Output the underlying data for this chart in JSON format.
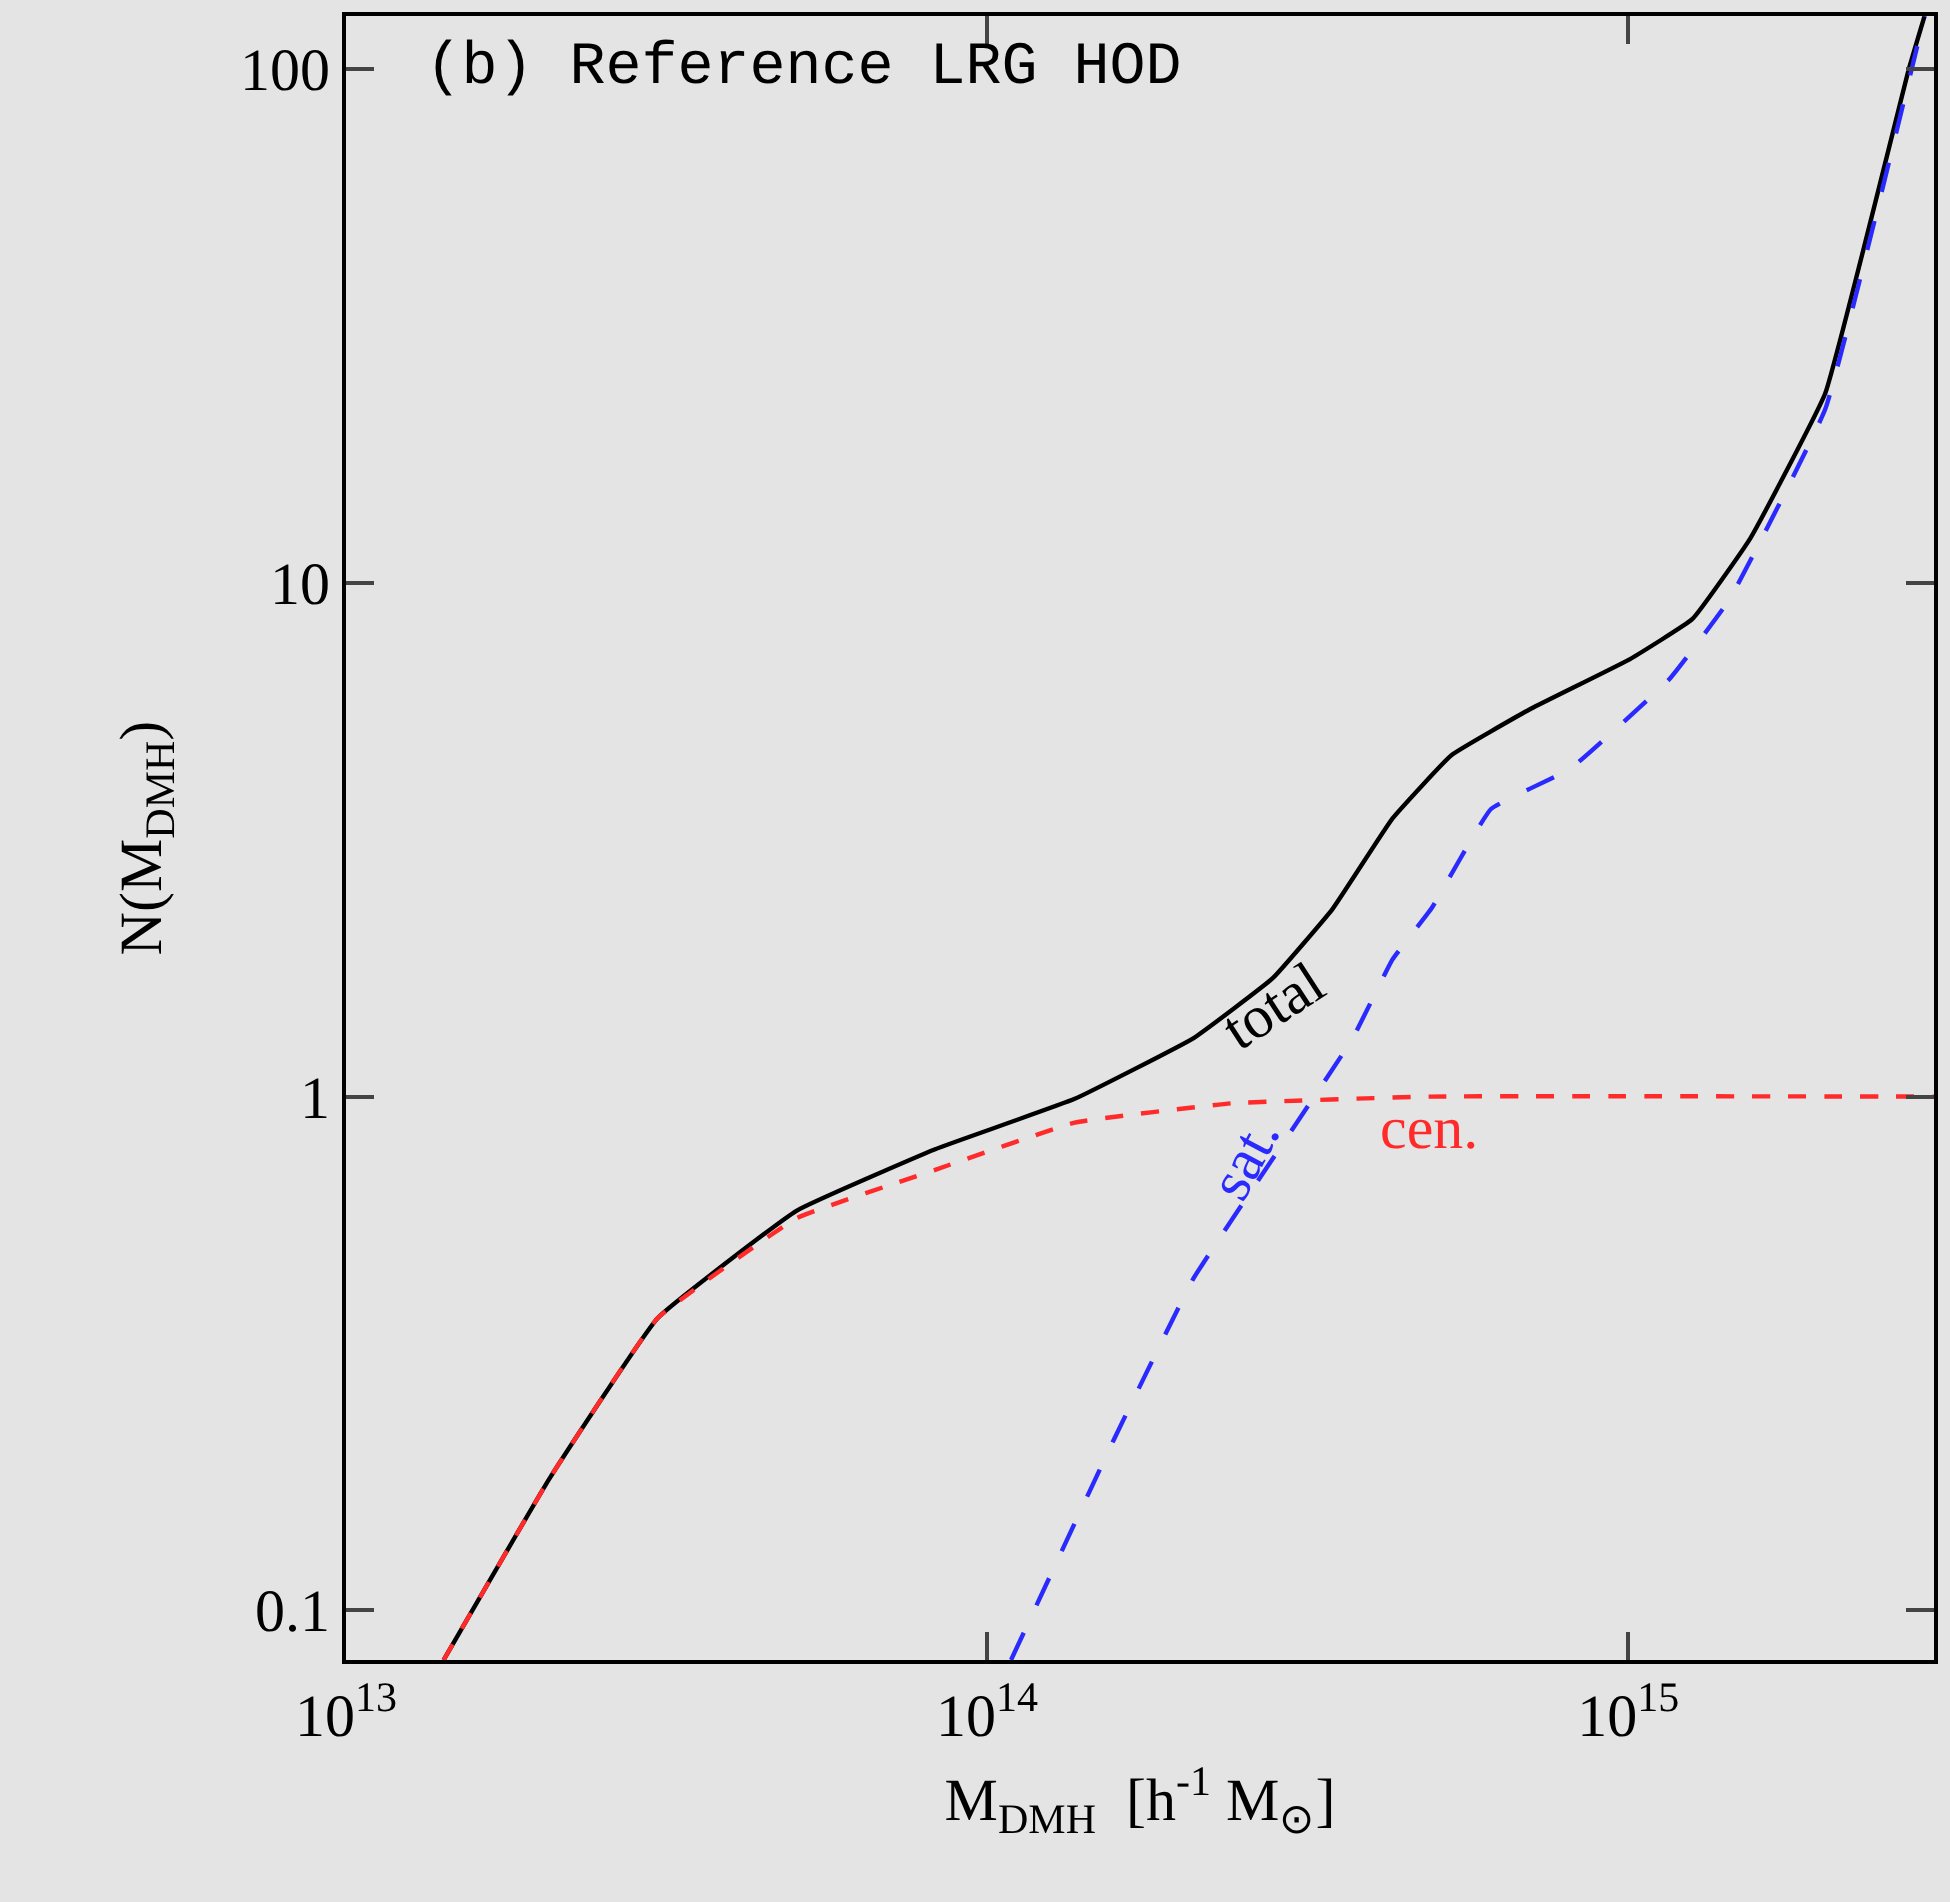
{
  "chart_data": {
    "type": "line",
    "title": "(b) Reference LRG HOD",
    "xlabel": "M$_{DMH}$  [h$^{-1}$ M$_{⊙}$]",
    "ylabel": "N(M$_{DMH}$)",
    "log": "xy",
    "grid": false,
    "legend": false,
    "marker": "none",
    "xlim": [
      10000000000000.0,
      3000000000000000.0
    ],
    "ylim": [
      0.08,
      127
    ],
    "xticks": [
      {
        "value": 10000000000000.0,
        "label": "10$^{13}$"
      },
      {
        "value": 100000000000000.0,
        "label": "10$^{14}$"
      },
      {
        "value": 1000000000000000.0,
        "label": "10$^{15}$"
      }
    ],
    "yticks": [
      0.1,
      1,
      10,
      100
    ],
    "series": [
      {
        "name": "total",
        "color": "#000000",
        "line_style": "solid",
        "x": [
          14200000000000.0,
          20800000000000.0,
          30600000000000.0,
          50500000000000.0,
          83000000000000.0,
          137000000000000.0,
          210000000000000.0,
          279000000000000.0,
          346000000000000.0,
          429000000000000.0,
          530000000000000.0,
          705000000000000.0,
          1007000000000000.0,
          1260000000000000.0,
          1550000000000000.0,
          2030000000000000.0,
          2740000000000000.0,
          2900000000000000.0
        ],
        "values": [
          0.08,
          0.181,
          0.37,
          0.6,
          0.79,
          0.99,
          1.3,
          1.7,
          2.32,
          3.48,
          4.62,
          5.69,
          7.11,
          8.51,
          12.2,
          23.4,
          100,
          127
        ]
      },
      {
        "name": "cen.",
        "color": "#ff2a2a",
        "line_style": "dashed",
        "x": [
          14200000000000.0,
          20800000000000.0,
          30600000000000.0,
          50500000000000.0,
          83000000000000.0,
          137000000000000.0,
          240000000000000.0,
          490000000000000.0,
          3000000000000000.0
        ],
        "values": [
          0.08,
          0.181,
          0.37,
          0.58,
          0.72,
          0.89,
          0.97,
          1.0,
          1.0
        ]
      },
      {
        "name": "sat.",
        "color": "#2a2aff",
        "line_style": "dashed",
        "x": [
          109000000000000.0,
          158000000000000.0,
          210000000000000.0,
          279000000000000.0,
          372000000000000.0,
          429000000000000.0,
          493000000000000.0,
          611000000000000.0,
          813000000000000.0,
          1160000000000000.0,
          1440000000000000.0,
          2030000000000000.0,
          2900000000000000.0
        ],
        "values": [
          0.08,
          0.216,
          0.443,
          0.757,
          1.3,
          1.85,
          2.32,
          3.63,
          4.35,
          6.5,
          9.3,
          21.8,
          127
        ]
      }
    ]
  }
}
